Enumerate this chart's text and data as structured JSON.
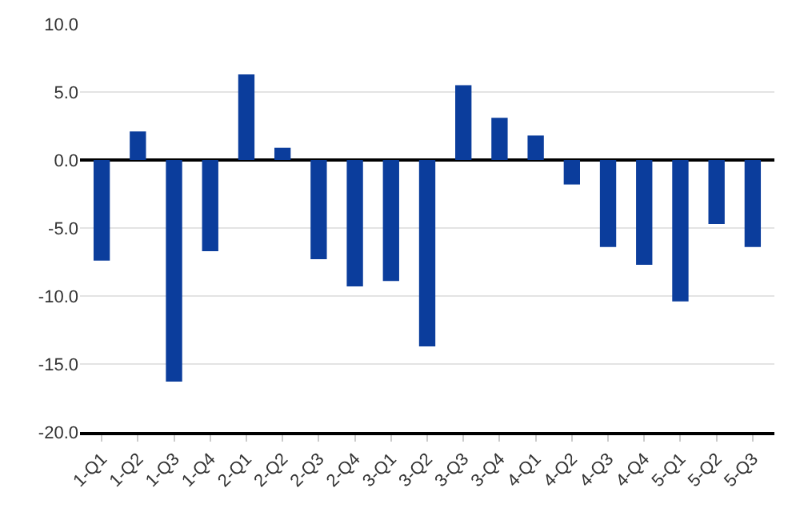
{
  "chart_data": {
    "type": "bar",
    "categories": [
      "1-Q1",
      "1-Q2",
      "1-Q3",
      "1-Q4",
      "2-Q1",
      "2-Q2",
      "2-Q3",
      "2-Q4",
      "3-Q1",
      "3-Q2",
      "3-Q3",
      "3-Q4",
      "4-Q1",
      "4-Q2",
      "4-Q3",
      "4-Q4",
      "5-Q1",
      "5-Q2",
      "5-Q3"
    ],
    "values": [
      -7.4,
      2.1,
      -16.3,
      -6.7,
      6.3,
      0.9,
      -7.3,
      -9.3,
      -8.9,
      -13.7,
      5.5,
      3.1,
      1.8,
      -1.8,
      -6.4,
      -7.7,
      -10.4,
      -4.7,
      -6.4
    ],
    "color": "#0b3d9c",
    "ylim": [
      -20,
      10
    ],
    "yticks": [
      {
        "value": -20,
        "label": "-20.0"
      },
      {
        "value": -15,
        "label": "-15.0"
      },
      {
        "value": -10,
        "label": "-10.0"
      },
      {
        "value": -5,
        "label": "-5.0"
      },
      {
        "value": 0,
        "label": "0.0"
      },
      {
        "value": 5,
        "label": "5.0"
      },
      {
        "value": 10,
        "label": "10.0"
      }
    ],
    "grid": "y"
  }
}
